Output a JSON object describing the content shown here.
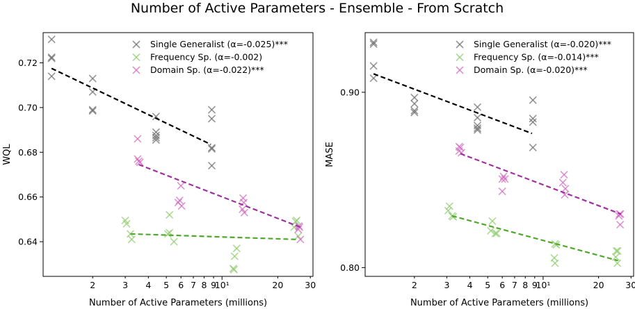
{
  "figure": {
    "title": "Number of Active Parameters - Ensemble - From Scratch"
  },
  "colors": {
    "single": "#707070",
    "frequency": "#90cc70",
    "domain": "#d070c0",
    "single_line": "#000000",
    "frequency_line": "#4ea82a",
    "domain_line": "#a030a0"
  },
  "chart_data": [
    {
      "type": "scatter",
      "title": "",
      "xlabel": "Number of Active Parameters (millions)",
      "ylabel": "WQL",
      "xscale": "log",
      "xlim": [
        1.08,
        31
      ],
      "ylim": [
        0.6245,
        0.7335
      ],
      "xticks": [
        {
          "value": 2,
          "label": "2"
        },
        {
          "value": 3,
          "label": "3"
        },
        {
          "value": 4,
          "label": "4"
        },
        {
          "value": 5,
          "label": "5"
        },
        {
          "value": 6,
          "label": "6"
        },
        {
          "value": 7,
          "label": "7"
        },
        {
          "value": 8,
          "label": "8"
        },
        {
          "value": 9,
          "label": "9"
        },
        {
          "value": 10,
          "label": "10¹"
        },
        {
          "value": 20,
          "label": "20"
        },
        {
          "value": 30,
          "label": "30"
        }
      ],
      "yticks": [
        {
          "value": 0.64,
          "label": "0.64"
        },
        {
          "value": 0.66,
          "label": "0.66"
        },
        {
          "value": 0.68,
          "label": "0.68"
        },
        {
          "value": 0.7,
          "label": "0.70"
        },
        {
          "value": 0.72,
          "label": "0.72"
        }
      ],
      "legend_position": "top-right",
      "series": [
        {
          "name": "Single Generalist (α=-0.025)***",
          "color_key": "single",
          "line_color_key": "single_line",
          "fit": [
            [
              1.2,
              0.7175
            ],
            [
              8.7,
              0.6835
            ]
          ],
          "points": [
            [
              1.2,
              0.7305
            ],
            [
              1.2,
              0.7225
            ],
            [
              1.2,
              0.722
            ],
            [
              1.2,
              0.714
            ],
            [
              2.0,
              0.713
            ],
            [
              2.0,
              0.707
            ],
            [
              2.0,
              0.6985
            ],
            [
              2.0,
              0.699
            ],
            [
              4.4,
              0.696
            ],
            [
              4.4,
              0.689
            ],
            [
              4.4,
              0.6875
            ],
            [
              4.4,
              0.6865
            ],
            [
              4.4,
              0.6855
            ],
            [
              8.8,
              0.699
            ],
            [
              8.8,
              0.695
            ],
            [
              8.8,
              0.682
            ],
            [
              8.8,
              0.6815
            ],
            [
              8.8,
              0.674
            ]
          ]
        },
        {
          "name": "Frequency Sp. (α=-0.002)",
          "color_key": "frequency",
          "line_color_key": "frequency_line",
          "fit": [
            [
              3.2,
              0.6435
            ],
            [
              25.5,
              0.641
            ]
          ],
          "points": [
            [
              3.0,
              0.6495
            ],
            [
              3.05,
              0.648
            ],
            [
              3.2,
              0.6435
            ],
            [
              3.25,
              0.641
            ],
            [
              5.2,
              0.652
            ],
            [
              5.1,
              0.6435
            ],
            [
              5.2,
              0.644
            ],
            [
              5.5,
              0.64
            ],
            [
              12.0,
              0.637
            ],
            [
              11.7,
              0.6335
            ],
            [
              11.5,
              0.628
            ],
            [
              11.6,
              0.6275
            ],
            [
              25.0,
              0.649
            ],
            [
              25.3,
              0.6495
            ],
            [
              24.5,
              0.6465
            ],
            [
              25.8,
              0.6425
            ]
          ]
        },
        {
          "name": "Domain Sp. (α=-0.022)***",
          "color_key": "domain",
          "line_color_key": "domain_line",
          "fit": [
            [
              3.55,
              0.6745
            ],
            [
              26.5,
              0.6465
            ]
          ],
          "points": [
            [
              3.5,
              0.686
            ],
            [
              3.5,
              0.677
            ],
            [
              3.55,
              0.676
            ],
            [
              3.6,
              0.6755
            ],
            [
              6.0,
              0.665
            ],
            [
              5.9,
              0.6585
            ],
            [
              6.05,
              0.656
            ],
            [
              5.8,
              0.6575
            ],
            [
              13.0,
              0.6595
            ],
            [
              13.1,
              0.6575
            ],
            [
              12.9,
              0.6545
            ],
            [
              13.2,
              0.653
            ],
            [
              26.0,
              0.647
            ],
            [
              26.2,
              0.6465
            ],
            [
              25.8,
              0.6455
            ],
            [
              26.5,
              0.641
            ]
          ]
        }
      ]
    },
    {
      "type": "scatter",
      "title": "",
      "xlabel": "Number of Active Parameters (millions)",
      "ylabel": "MASE",
      "xscale": "log",
      "xlim": [
        1.08,
        31
      ],
      "ylim": [
        0.795,
        0.934
      ],
      "xticks": [
        {
          "value": 2,
          "label": "2"
        },
        {
          "value": 3,
          "label": "3"
        },
        {
          "value": 4,
          "label": "4"
        },
        {
          "value": 5,
          "label": "5"
        },
        {
          "value": 6,
          "label": "6"
        },
        {
          "value": 7,
          "label": "7"
        },
        {
          "value": 8,
          "label": "8"
        },
        {
          "value": 9,
          "label": "9"
        },
        {
          "value": 10,
          "label": "10¹"
        },
        {
          "value": 20,
          "label": "20"
        },
        {
          "value": 30,
          "label": "30"
        }
      ],
      "yticks": [
        {
          "value": 0.8,
          "label": "0.80"
        },
        {
          "value": 0.9,
          "label": "0.90"
        }
      ],
      "legend_position": "top-right",
      "series": [
        {
          "name": "Single Generalist (α=-0.020)***",
          "color_key": "single",
          "line_color_key": "single_line",
          "fit": [
            [
              1.2,
              0.9105
            ],
            [
              8.7,
              0.8765
            ]
          ],
          "points": [
            [
              1.2,
              0.9285
            ],
            [
              1.2,
              0.9275
            ],
            [
              1.2,
              0.915
            ],
            [
              1.2,
              0.908
            ],
            [
              2.0,
              0.897
            ],
            [
              2.0,
              0.8935
            ],
            [
              2.0,
              0.8895
            ],
            [
              2.0,
              0.8885
            ],
            [
              4.4,
              0.8915
            ],
            [
              4.4,
              0.8855
            ],
            [
              4.4,
              0.881
            ],
            [
              4.4,
              0.8795
            ],
            [
              4.4,
              0.8785
            ],
            [
              8.8,
              0.8955
            ],
            [
              8.8,
              0.885
            ],
            [
              8.8,
              0.883
            ],
            [
              8.8,
              0.8685
            ]
          ]
        },
        {
          "name": "Frequency Sp. (α=-0.014)***",
          "color_key": "frequency",
          "line_color_key": "frequency_line",
          "fit": [
            [
              3.2,
              0.8295
            ],
            [
              25.5,
              0.804
            ]
          ],
          "points": [
            [
              3.1,
              0.835
            ],
            [
              3.05,
              0.8325
            ],
            [
              3.2,
              0.8295
            ],
            [
              3.25,
              0.829
            ],
            [
              5.3,
              0.8265
            ],
            [
              5.2,
              0.821
            ],
            [
              5.5,
              0.8195
            ],
            [
              5.6,
              0.8195
            ],
            [
              11.6,
              0.8135
            ],
            [
              11.8,
              0.813
            ],
            [
              11.5,
              0.8055
            ],
            [
              11.6,
              0.8025
            ],
            [
              25.0,
              0.8095
            ],
            [
              25.4,
              0.8095
            ],
            [
              24.8,
              0.806
            ],
            [
              25.3,
              0.8025
            ]
          ]
        },
        {
          "name": "Domain Sp. (α=-0.020)***",
          "color_key": "domain",
          "line_color_key": "domain_line",
          "fit": [
            [
              3.55,
              0.865
            ],
            [
              26.5,
              0.8305
            ]
          ],
          "points": [
            [
              3.5,
              0.869
            ],
            [
              3.55,
              0.8685
            ],
            [
              3.5,
              0.8665
            ],
            [
              3.6,
              0.8655
            ],
            [
              6.1,
              0.852
            ],
            [
              6.0,
              0.8505
            ],
            [
              6.2,
              0.8505
            ],
            [
              6.0,
              0.8435
            ],
            [
              13.0,
              0.853
            ],
            [
              12.8,
              0.8485
            ],
            [
              13.2,
              0.845
            ],
            [
              13.1,
              0.8415
            ],
            [
              26.0,
              0.8305
            ],
            [
              26.3,
              0.8305
            ],
            [
              25.8,
              0.8295
            ],
            [
              26.2,
              0.8245
            ]
          ]
        }
      ]
    }
  ]
}
